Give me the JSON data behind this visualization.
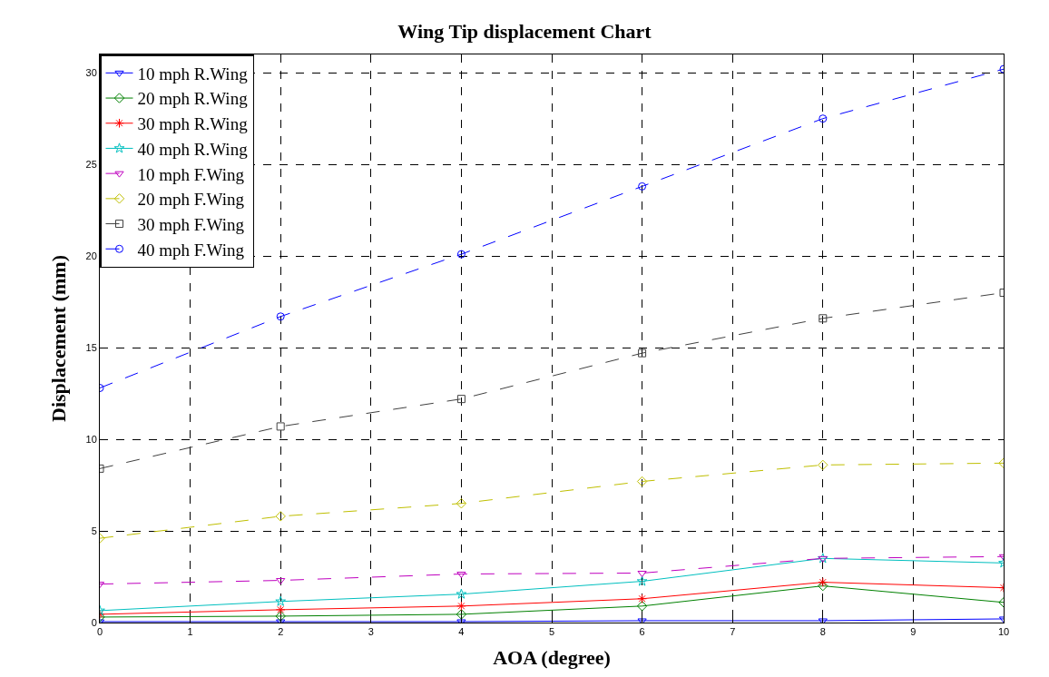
{
  "chart_data": {
    "type": "line",
    "title": "Wing Tip displacement Chart",
    "xlabel": "AOA (degree)",
    "ylabel": "Displacement (mm)",
    "x": [
      0,
      2,
      4,
      6,
      8,
      10
    ],
    "series": [
      {
        "name": "10 mph R.Wing",
        "color": "#0000ff",
        "marker": "triangle",
        "line_style": "solid",
        "values": [
          0.05,
          0.05,
          0.05,
          0.1,
          0.1,
          0.2
        ]
      },
      {
        "name": "20 mph R.Wing",
        "color": "#008000",
        "marker": "diamond",
        "line_style": "solid",
        "values": [
          0.3,
          0.35,
          0.45,
          0.9,
          2.0,
          1.1
        ]
      },
      {
        "name": "30 mph R.Wing",
        "color": "#ff0000",
        "marker": "cross",
        "line_style": "solid",
        "values": [
          0.45,
          0.7,
          0.9,
          1.3,
          2.2,
          1.9
        ]
      },
      {
        "name": "40 mph R.Wing",
        "color": "#00bfbf",
        "marker": "star",
        "line_style": "solid",
        "values": [
          0.65,
          1.15,
          1.55,
          2.25,
          3.5,
          3.25
        ]
      },
      {
        "name": "10 mph F.Wing",
        "color": "#bf00bf",
        "marker": "triangle",
        "line_style": "dashed",
        "values": [
          2.1,
          2.3,
          2.65,
          2.7,
          3.5,
          3.6
        ]
      },
      {
        "name": "20 mph F.Wing",
        "color": "#bfbf00",
        "marker": "diamond",
        "line_style": "dashed",
        "values": [
          4.6,
          5.8,
          6.5,
          7.7,
          8.6,
          8.7
        ]
      },
      {
        "name": "30 mph F.Wing",
        "color": "#404040",
        "marker": "square",
        "line_style": "dashed",
        "values": [
          8.4,
          10.7,
          12.2,
          14.7,
          16.6,
          18.0
        ]
      },
      {
        "name": "40 mph F.Wing",
        "color": "#0000ff",
        "marker": "circle",
        "line_style": "dashed",
        "values": [
          12.8,
          16.7,
          20.1,
          23.8,
          27.5,
          30.2
        ]
      }
    ],
    "xlim": [
      0,
      10
    ],
    "ylim": [
      0,
      31
    ],
    "xticks": [
      0,
      1,
      2,
      3,
      4,
      5,
      6,
      7,
      8,
      9,
      10
    ],
    "yticks": [
      0,
      5,
      10,
      15,
      20,
      25,
      30
    ],
    "grid": true,
    "legend": "top left"
  }
}
